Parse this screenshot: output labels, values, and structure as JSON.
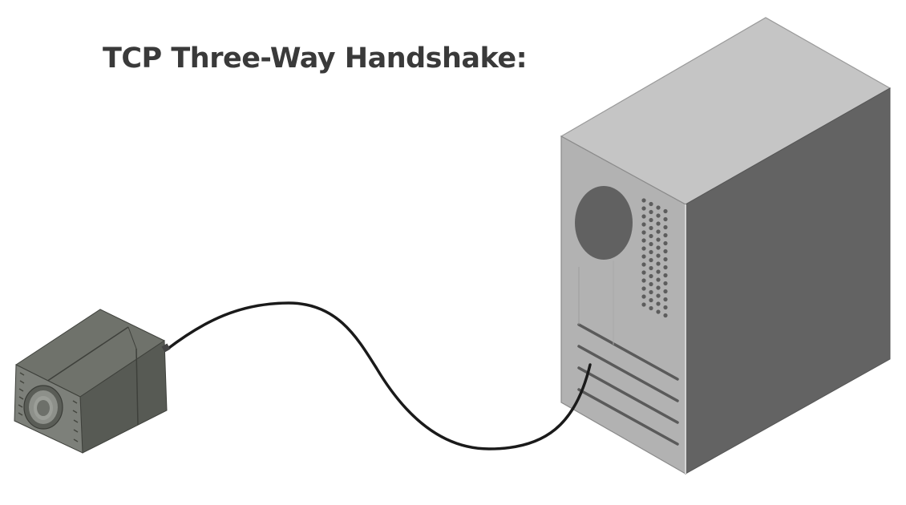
{
  "title": "TCP Three-Way Handshake:",
  "colors": {
    "title": "#3a3a3a",
    "cable": "#1a1a1a",
    "camera_dark": "#4f514c",
    "camera_mid": "#676a64",
    "camera_light": "#8b8e88",
    "pc_top": "#c5c5c5",
    "pc_front": "#b2b2b2",
    "pc_side": "#636363",
    "pc_vent": "#5a5a5a"
  },
  "icons": {
    "camera": "industrial-camera-icon",
    "cable": "ethernet-cable-icon",
    "computer": "desktop-tower-icon"
  }
}
